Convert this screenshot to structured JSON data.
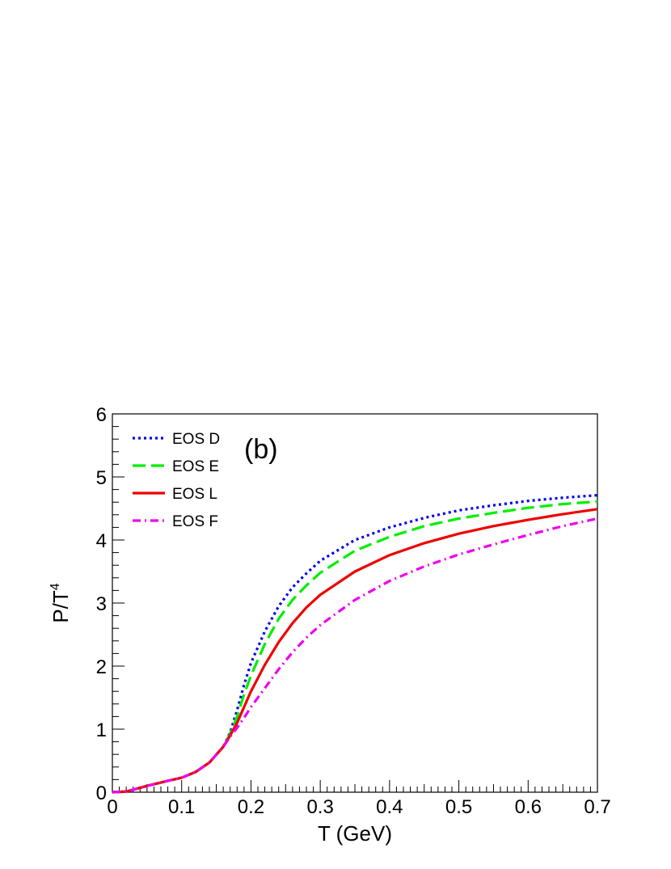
{
  "chart_data": {
    "type": "line",
    "xlabel": "T (GeV)",
    "ylabel_base": "P/T",
    "ylabel_sup": "4",
    "annotation": "(b)",
    "xlim": [
      0,
      0.7
    ],
    "ylim": [
      0,
      6
    ],
    "x_ticks": [
      "0",
      "0.1",
      "0.2",
      "0.3",
      "0.4",
      "0.5",
      "0.6",
      "0.7"
    ],
    "y_ticks": [
      "0",
      "1",
      "2",
      "3",
      "4",
      "5",
      "6"
    ],
    "legend_position": "top-left",
    "grid": false,
    "series": [
      {
        "name": "EOS D",
        "color": "#0000ee",
        "style": "dotted",
        "points": [
          [
            0,
            0
          ],
          [
            0.02,
            0.01
          ],
          [
            0.05,
            0.1
          ],
          [
            0.08,
            0.18
          ],
          [
            0.1,
            0.23
          ],
          [
            0.12,
            0.32
          ],
          [
            0.14,
            0.47
          ],
          [
            0.16,
            0.72
          ],
          [
            0.17,
            0.95
          ],
          [
            0.18,
            1.3
          ],
          [
            0.19,
            1.7
          ],
          [
            0.2,
            2.05
          ],
          [
            0.22,
            2.55
          ],
          [
            0.24,
            2.95
          ],
          [
            0.26,
            3.25
          ],
          [
            0.28,
            3.47
          ],
          [
            0.3,
            3.67
          ],
          [
            0.35,
            4.0
          ],
          [
            0.4,
            4.2
          ],
          [
            0.45,
            4.35
          ],
          [
            0.5,
            4.47
          ],
          [
            0.55,
            4.55
          ],
          [
            0.6,
            4.62
          ],
          [
            0.65,
            4.67
          ],
          [
            0.7,
            4.71
          ]
        ]
      },
      {
        "name": "EOS E",
        "color": "#00ee00",
        "style": "dashed",
        "points": [
          [
            0,
            0
          ],
          [
            0.02,
            0.01
          ],
          [
            0.05,
            0.1
          ],
          [
            0.08,
            0.18
          ],
          [
            0.1,
            0.23
          ],
          [
            0.12,
            0.32
          ],
          [
            0.14,
            0.47
          ],
          [
            0.16,
            0.72
          ],
          [
            0.17,
            0.93
          ],
          [
            0.18,
            1.2
          ],
          [
            0.19,
            1.55
          ],
          [
            0.2,
            1.85
          ],
          [
            0.22,
            2.35
          ],
          [
            0.24,
            2.75
          ],
          [
            0.26,
            3.05
          ],
          [
            0.28,
            3.28
          ],
          [
            0.3,
            3.48
          ],
          [
            0.35,
            3.83
          ],
          [
            0.4,
            4.05
          ],
          [
            0.45,
            4.22
          ],
          [
            0.5,
            4.34
          ],
          [
            0.55,
            4.43
          ],
          [
            0.6,
            4.51
          ],
          [
            0.65,
            4.57
          ],
          [
            0.7,
            4.61
          ]
        ]
      },
      {
        "name": "EOS L",
        "color": "#ee0000",
        "style": "solid",
        "points": [
          [
            0,
            0
          ],
          [
            0.02,
            0.01
          ],
          [
            0.05,
            0.1
          ],
          [
            0.08,
            0.18
          ],
          [
            0.1,
            0.23
          ],
          [
            0.12,
            0.32
          ],
          [
            0.14,
            0.47
          ],
          [
            0.16,
            0.72
          ],
          [
            0.17,
            0.9
          ],
          [
            0.18,
            1.1
          ],
          [
            0.19,
            1.35
          ],
          [
            0.2,
            1.6
          ],
          [
            0.22,
            2.02
          ],
          [
            0.24,
            2.38
          ],
          [
            0.26,
            2.68
          ],
          [
            0.28,
            2.93
          ],
          [
            0.3,
            3.13
          ],
          [
            0.35,
            3.5
          ],
          [
            0.4,
            3.76
          ],
          [
            0.45,
            3.95
          ],
          [
            0.5,
            4.1
          ],
          [
            0.55,
            4.22
          ],
          [
            0.6,
            4.32
          ],
          [
            0.65,
            4.41
          ],
          [
            0.7,
            4.49
          ]
        ]
      },
      {
        "name": "EOS F",
        "color": "#ee00ee",
        "style": "dashdot",
        "points": [
          [
            0,
            0
          ],
          [
            0.02,
            0.01
          ],
          [
            0.05,
            0.1
          ],
          [
            0.08,
            0.18
          ],
          [
            0.1,
            0.23
          ],
          [
            0.12,
            0.32
          ],
          [
            0.14,
            0.47
          ],
          [
            0.16,
            0.72
          ],
          [
            0.17,
            0.88
          ],
          [
            0.18,
            1.02
          ],
          [
            0.19,
            1.18
          ],
          [
            0.2,
            1.35
          ],
          [
            0.22,
            1.65
          ],
          [
            0.24,
            1.95
          ],
          [
            0.26,
            2.22
          ],
          [
            0.28,
            2.45
          ],
          [
            0.3,
            2.65
          ],
          [
            0.35,
            3.05
          ],
          [
            0.4,
            3.35
          ],
          [
            0.45,
            3.58
          ],
          [
            0.5,
            3.77
          ],
          [
            0.55,
            3.93
          ],
          [
            0.6,
            4.08
          ],
          [
            0.65,
            4.22
          ],
          [
            0.7,
            4.34
          ]
        ]
      }
    ]
  }
}
